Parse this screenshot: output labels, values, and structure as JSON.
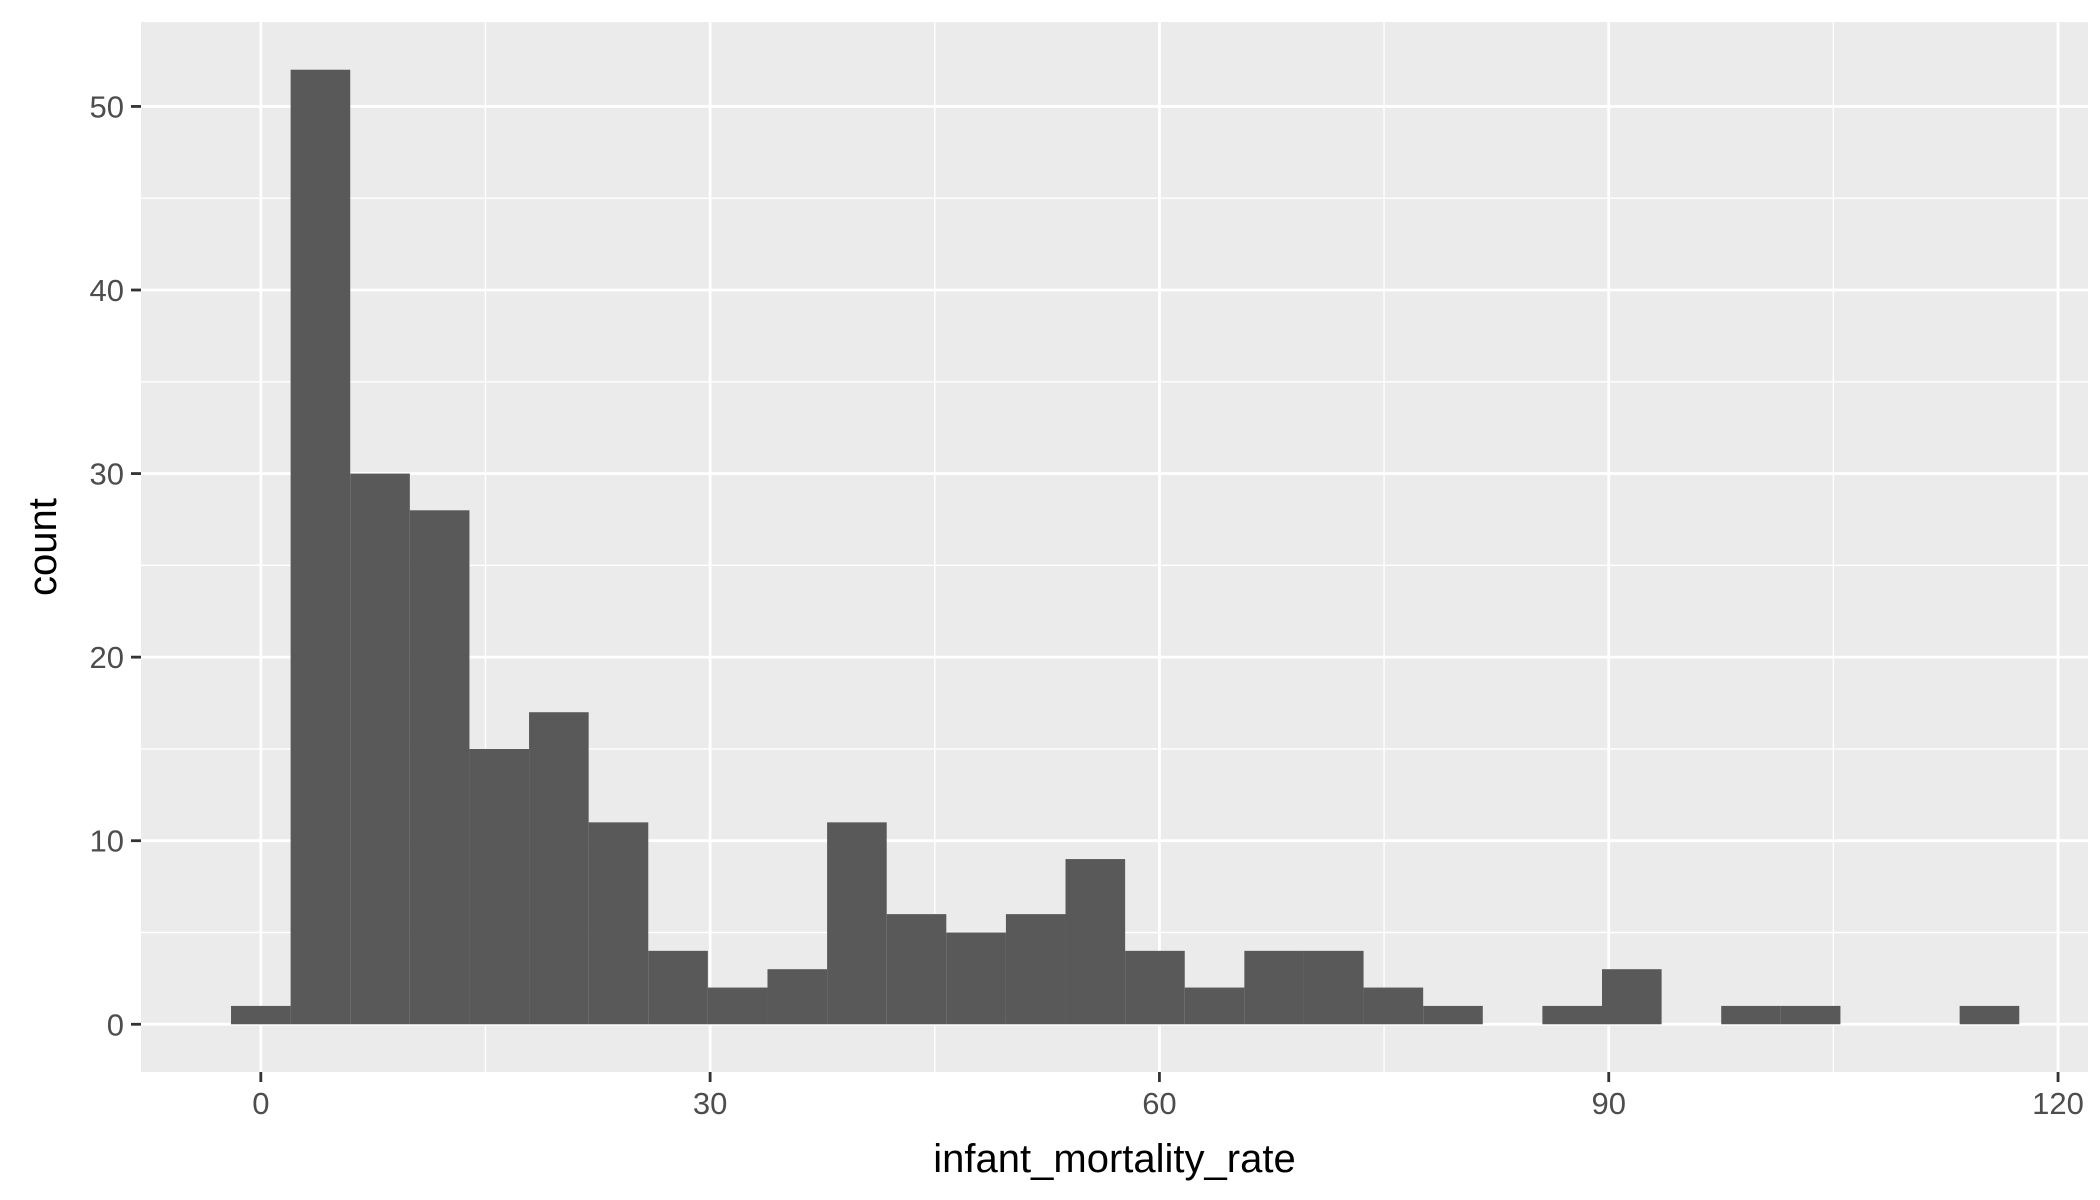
{
  "chart_data": {
    "type": "bar",
    "subtype": "histogram",
    "title": "",
    "xlabel": "infant_mortality_rate",
    "ylabel": "count",
    "xlim": [
      -8,
      122
    ],
    "ylim": [
      -2.6,
      54.6
    ],
    "x_ticks": [
      0,
      30,
      60,
      90,
      120
    ],
    "x_tick_labels": [
      "0",
      "30",
      "60",
      "90",
      "120"
    ],
    "y_ticks": [
      0,
      10,
      20,
      30,
      40,
      50
    ],
    "y_tick_labels": [
      "0",
      "10",
      "20",
      "30",
      "40",
      "50"
    ],
    "x_minor_gridlines": [
      15,
      45,
      75,
      105
    ],
    "y_minor_gridlines": [
      5,
      15,
      25,
      35,
      45
    ],
    "bin_width": 3.98,
    "bins": [
      {
        "x0": -1.99,
        "x1": 1.99,
        "count": 1
      },
      {
        "x0": 1.99,
        "x1": 5.97,
        "count": 52
      },
      {
        "x0": 5.97,
        "x1": 9.95,
        "count": 30
      },
      {
        "x0": 9.95,
        "x1": 13.93,
        "count": 28
      },
      {
        "x0": 13.93,
        "x1": 17.91,
        "count": 15
      },
      {
        "x0": 17.91,
        "x1": 21.89,
        "count": 17
      },
      {
        "x0": 21.89,
        "x1": 25.87,
        "count": 11
      },
      {
        "x0": 25.87,
        "x1": 29.85,
        "count": 4
      },
      {
        "x0": 29.85,
        "x1": 33.83,
        "count": 2
      },
      {
        "x0": 33.83,
        "x1": 37.81,
        "count": 3
      },
      {
        "x0": 37.81,
        "x1": 41.79,
        "count": 11
      },
      {
        "x0": 41.79,
        "x1": 45.77,
        "count": 6
      },
      {
        "x0": 45.77,
        "x1": 49.75,
        "count": 5
      },
      {
        "x0": 49.75,
        "x1": 53.73,
        "count": 6
      },
      {
        "x0": 53.73,
        "x1": 57.71,
        "count": 9
      },
      {
        "x0": 57.71,
        "x1": 61.69,
        "count": 4
      },
      {
        "x0": 61.69,
        "x1": 65.67,
        "count": 2
      },
      {
        "x0": 65.67,
        "x1": 69.65,
        "count": 4
      },
      {
        "x0": 69.65,
        "x1": 73.63,
        "count": 4
      },
      {
        "x0": 73.63,
        "x1": 77.61,
        "count": 2
      },
      {
        "x0": 77.61,
        "x1": 81.59,
        "count": 1
      },
      {
        "x0": 81.59,
        "x1": 85.57,
        "count": 0
      },
      {
        "x0": 85.57,
        "x1": 89.55,
        "count": 1
      },
      {
        "x0": 89.55,
        "x1": 93.53,
        "count": 3
      },
      {
        "x0": 93.53,
        "x1": 97.51,
        "count": 0
      },
      {
        "x0": 97.51,
        "x1": 101.49,
        "count": 1
      },
      {
        "x0": 101.49,
        "x1": 105.47,
        "count": 1
      },
      {
        "x0": 105.47,
        "x1": 109.45,
        "count": 0
      },
      {
        "x0": 109.45,
        "x1": 113.43,
        "count": 0
      },
      {
        "x0": 113.43,
        "x1": 117.41,
        "count": 1
      }
    ],
    "grid": true,
    "legend": "none",
    "colors": {
      "panel_background": "#ebebeb",
      "grid_major": "#ffffff",
      "grid_minor": "#ffffff",
      "bar_fill": "#595959",
      "tick_mark": "#333333",
      "tick_label": "#4d4d4d",
      "axis_title": "#000000"
    }
  }
}
